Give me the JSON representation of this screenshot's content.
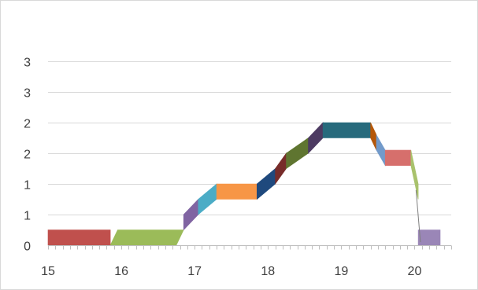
{
  "chart_data": {
    "type": "area",
    "title": "",
    "xlabel": "",
    "ylabel": "",
    "xlim": [
      15,
      20.5
    ],
    "ylim": [
      0,
      3.5
    ],
    "grid": true,
    "legend": "none",
    "x_ticks": [
      {
        "value": 15,
        "label": "15"
      },
      {
        "value": 16,
        "label": "16"
      },
      {
        "value": 17,
        "label": "17"
      },
      {
        "value": 18,
        "label": "18"
      },
      {
        "value": 19,
        "label": "19"
      },
      {
        "value": 20,
        "label": "20"
      }
    ],
    "y_ticks": [
      {
        "value": 0,
        "label": "0"
      },
      {
        "value": 0.5,
        "label": "1"
      },
      {
        "value": 1.0,
        "label": "1"
      },
      {
        "value": 1.5,
        "label": "2"
      },
      {
        "value": 2.0,
        "label": "2"
      },
      {
        "value": 2.5,
        "label": "3"
      },
      {
        "value": 3.0,
        "label": "3"
      }
    ],
    "band_thickness": 0.25,
    "series": [
      {
        "color": "#C0504D",
        "x": [
          15.0,
          15.85
        ],
        "y": [
          0.0,
          0.0
        ]
      },
      {
        "color": "#9BBB59",
        "x": [
          15.85,
          15.95,
          16.85,
          16.75
        ],
        "y": [
          0.0,
          0.25,
          0.25,
          0.0
        ]
      },
      {
        "color": "#8064A2",
        "x": [
          16.85,
          17.05
        ],
        "y": [
          0.25,
          0.5
        ]
      },
      {
        "color": "#4BACC6",
        "x": [
          17.05,
          17.3
        ],
        "y": [
          0.5,
          0.75
        ]
      },
      {
        "color": "#F79646",
        "x": [
          17.3,
          17.85
        ],
        "y": [
          0.75,
          0.75
        ]
      },
      {
        "color": "#1F497D",
        "x": [
          17.85,
          18.1
        ],
        "y": [
          0.75,
          1.0
        ]
      },
      {
        "color": "#772C2A",
        "x": [
          18.1,
          18.25
        ],
        "y": [
          1.0,
          1.25
        ]
      },
      {
        "color": "#5F7530",
        "x": [
          18.25,
          18.55
        ],
        "y": [
          1.25,
          1.5
        ]
      },
      {
        "color": "#4D3B62",
        "x": [
          18.55,
          18.75
        ],
        "y": [
          1.5,
          1.75
        ]
      },
      {
        "color": "#276A7C",
        "x": [
          18.75,
          19.4
        ],
        "y": [
          1.75,
          1.75
        ]
      },
      {
        "color": "#B65708",
        "x": [
          19.4,
          19.48
        ],
        "y": [
          1.75,
          1.55
        ]
      },
      {
        "color": "#729ACA",
        "x": [
          19.48,
          19.6
        ],
        "y": [
          1.55,
          1.3
        ]
      },
      {
        "color": "#D66F6C",
        "x": [
          19.6,
          19.95
        ],
        "y": [
          1.3,
          1.3
        ]
      },
      {
        "color": "#A9C26C",
        "x": [
          19.95,
          20.05
        ],
        "y": [
          1.3,
          0.75
        ]
      },
      {
        "color": "#9A86B7",
        "x": [
          20.05,
          20.35
        ],
        "y": [
          0.0,
          0.0
        ]
      }
    ]
  }
}
